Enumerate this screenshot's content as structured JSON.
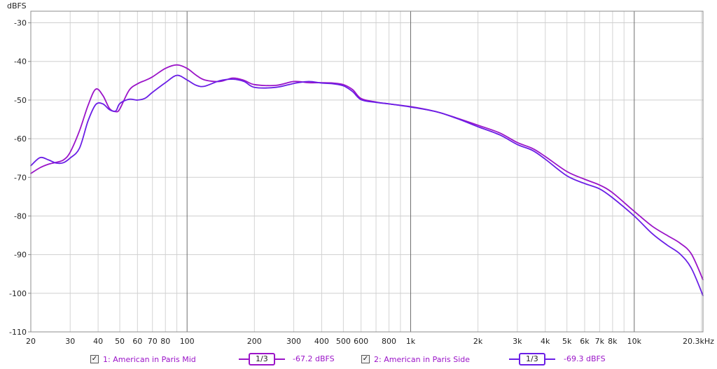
{
  "chart_data": {
    "type": "line",
    "y_unit": "dBFS",
    "x_unit": "kHz",
    "x_scale": "log",
    "x_range_hz": [
      20,
      20300
    ],
    "y_range": [
      -110,
      -27
    ],
    "grid": true,
    "y_ticks": [
      {
        "value": -30,
        "label": "-30"
      },
      {
        "value": -40,
        "label": "-40"
      },
      {
        "value": -50,
        "label": "-50"
      },
      {
        "value": -60,
        "label": "-60"
      },
      {
        "value": -70,
        "label": "-70"
      },
      {
        "value": -80,
        "label": "-80"
      },
      {
        "value": -90,
        "label": "-90"
      },
      {
        "value": -100,
        "label": "-100"
      },
      {
        "value": -110,
        "label": "-110"
      }
    ],
    "x_ticks": [
      {
        "hz": 20,
        "label": "20"
      },
      {
        "hz": 30,
        "label": "30"
      },
      {
        "hz": 40,
        "label": "40"
      },
      {
        "hz": 50,
        "label": "50"
      },
      {
        "hz": 60,
        "label": "60"
      },
      {
        "hz": 70,
        "label": "70"
      },
      {
        "hz": 80,
        "label": "80"
      },
      {
        "hz": 100,
        "label": "100"
      },
      {
        "hz": 200,
        "label": "200"
      },
      {
        "hz": 300,
        "label": "300"
      },
      {
        "hz": 400,
        "label": "400"
      },
      {
        "hz": 500,
        "label": "500"
      },
      {
        "hz": 600,
        "label": "600"
      },
      {
        "hz": 800,
        "label": "800"
      },
      {
        "hz": 1000,
        "label": "1k"
      },
      {
        "hz": 2000,
        "label": "2k"
      },
      {
        "hz": 3000,
        "label": "3k"
      },
      {
        "hz": 4000,
        "label": "4k"
      },
      {
        "hz": 5000,
        "label": "5k"
      },
      {
        "hz": 6000,
        "label": "6k"
      },
      {
        "hz": 7000,
        "label": "7k"
      },
      {
        "hz": 8000,
        "label": "8k"
      },
      {
        "hz": 10000,
        "label": "10k"
      }
    ],
    "x_end_label": "20.3kHz",
    "series": [
      {
        "name": "1: American in Paris Mid",
        "color": "#9b14c8",
        "x": [
          20,
          22,
          24,
          26,
          28,
          30,
          33,
          36,
          39,
          42,
          45,
          48,
          50,
          55,
          60,
          65,
          70,
          80,
          90,
          100,
          110,
          120,
          140,
          160,
          180,
          200,
          250,
          300,
          350,
          400,
          450,
          500,
          550,
          600,
          700,
          800,
          1000,
          1300,
          1600,
          2000,
          2500,
          3000,
          3500,
          4000,
          5000,
          6000,
          7000,
          8000,
          10000,
          12000,
          14000,
          16000,
          18000,
          20300
        ],
        "y": [
          -69,
          -67.5,
          -66.6,
          -66.1,
          -65.5,
          -63.5,
          -58,
          -51.5,
          -47.2,
          -48.8,
          -52.2,
          -53,
          -52.3,
          -47.5,
          -45.8,
          -44.9,
          -44,
          -41.8,
          -40.9,
          -41.8,
          -43.6,
          -44.8,
          -45.2,
          -44.3,
          -44.9,
          -46,
          -46.2,
          -45.2,
          -45.5,
          -45.5,
          -45.6,
          -46,
          -47.3,
          -49.6,
          -50.5,
          -51,
          -51.7,
          -53,
          -54.6,
          -56.5,
          -58.5,
          -61,
          -62.5,
          -64.6,
          -68.5,
          -70.5,
          -72,
          -74,
          -78.8,
          -82.6,
          -85,
          -87,
          -89.8,
          -96.5
        ]
      },
      {
        "name": "2: American in Paris Side",
        "color": "#6a1ee6",
        "x": [
          20,
          22,
          24,
          26,
          28,
          30,
          33,
          36,
          39,
          42,
          45,
          48,
          50,
          55,
          60,
          65,
          70,
          80,
          90,
          100,
          110,
          120,
          140,
          160,
          180,
          200,
          250,
          300,
          350,
          400,
          450,
          500,
          550,
          600,
          700,
          800,
          1000,
          1300,
          1600,
          2000,
          2500,
          3000,
          3500,
          4000,
          5000,
          6000,
          7000,
          8000,
          10000,
          12000,
          14000,
          16000,
          18000,
          20300
        ],
        "y": [
          -67,
          -64.9,
          -65.5,
          -66.3,
          -66.2,
          -65,
          -62.5,
          -55.5,
          -51.2,
          -51,
          -52.5,
          -52.8,
          -50.9,
          -49.8,
          -50,
          -49.5,
          -48,
          -45.5,
          -43.6,
          -44.8,
          -46.2,
          -46.4,
          -45,
          -44.6,
          -45.2,
          -46.7,
          -46.7,
          -45.7,
          -45.2,
          -45.6,
          -45.8,
          -46.3,
          -47.8,
          -49.9,
          -50.6,
          -51,
          -51.8,
          -53,
          -54.7,
          -56.9,
          -59,
          -61.5,
          -63,
          -65.3,
          -69.6,
          -71.6,
          -73,
          -75.3,
          -80,
          -84.5,
          -87.5,
          -89.8,
          -93.5,
          -100.6
        ]
      }
    ]
  },
  "legend": {
    "item1": {
      "check": "✓",
      "name": "1: American in Paris Mid",
      "smoothing": "1/3",
      "level": "-67.2 dBFS"
    },
    "item2": {
      "check": "✓",
      "name": "2: American in Paris Side",
      "smoothing": "1/3",
      "level": "-69.3 dBFS"
    },
    "text_color": "#9b14c8"
  }
}
